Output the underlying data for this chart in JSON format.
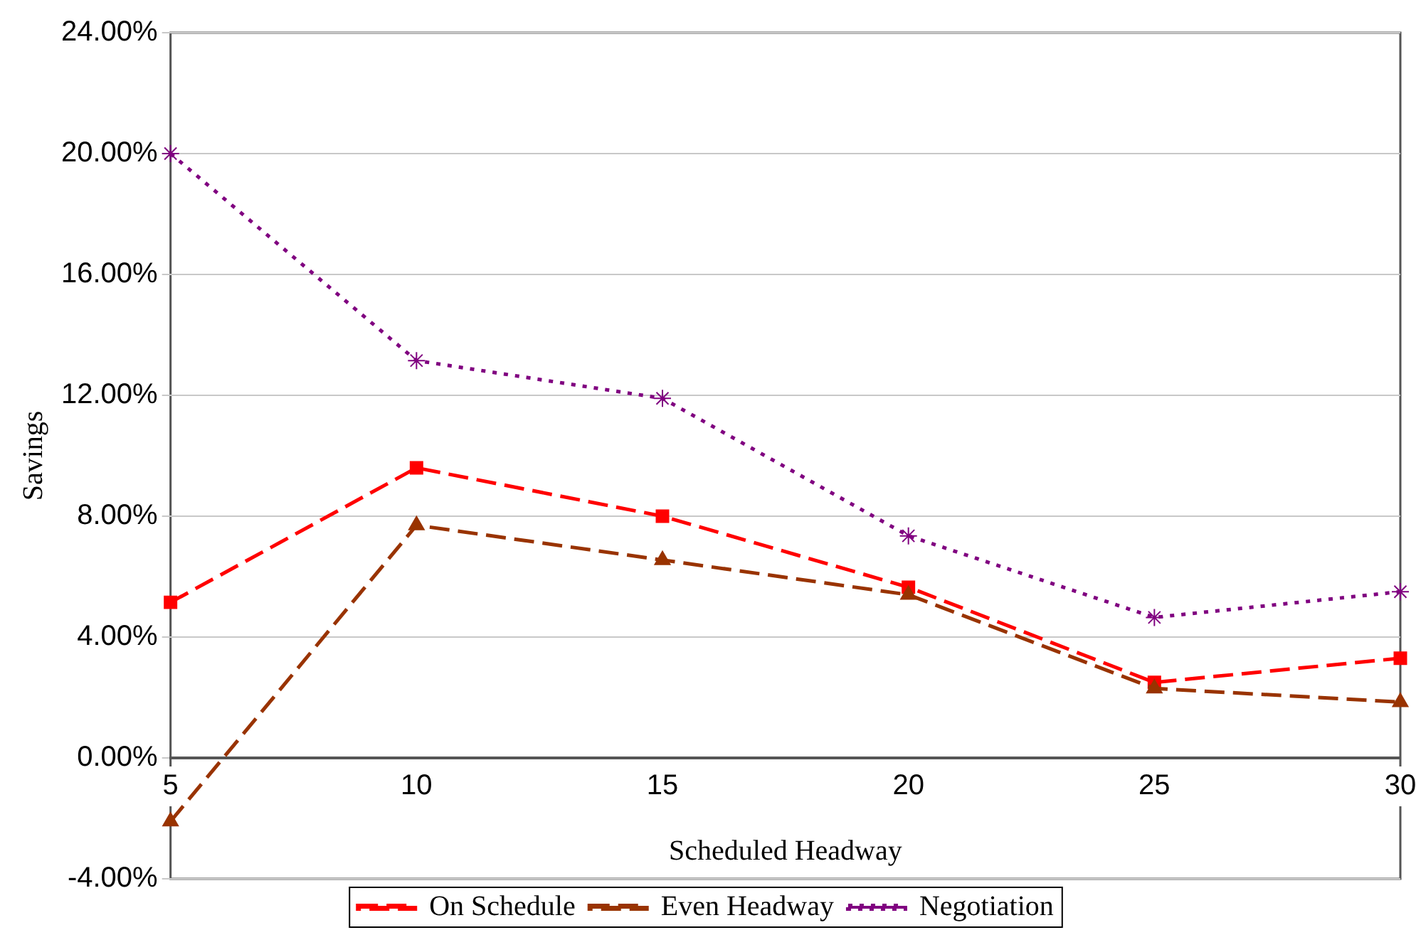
{
  "chart_data": {
    "type": "line",
    "xlabel": "Scheduled Headway",
    "ylabel": "Savings",
    "categories": [
      "5",
      "10",
      "15",
      "20",
      "25",
      "30"
    ],
    "series": [
      {
        "name": "On Schedule",
        "color": "#ff0000",
        "marker": "square",
        "line_style": "dashed",
        "values": [
          5.15,
          9.6,
          8.0,
          5.65,
          2.5,
          3.3
        ]
      },
      {
        "name": "Even Headway",
        "color": "#993300",
        "marker": "triangle",
        "line_style": "dashed",
        "values": [
          -2.1,
          7.7,
          6.55,
          5.4,
          2.3,
          1.85
        ]
      },
      {
        "name": "Negotiation",
        "color": "#800080",
        "marker": "cross",
        "line_style": "dotted",
        "values": [
          20.0,
          13.15,
          11.9,
          7.35,
          4.65,
          5.5
        ]
      }
    ],
    "ylim": [
      -4,
      24
    ],
    "yticks": [
      {
        "value": -4,
        "label": "-4.00%"
      },
      {
        "value": 0,
        "label": "0.00%"
      },
      {
        "value": 4,
        "label": "4.00%"
      },
      {
        "value": 8,
        "label": "8.00%"
      },
      {
        "value": 12,
        "label": "12.00%"
      },
      {
        "value": 16,
        "label": "16.00%"
      },
      {
        "value": 20,
        "label": "20.00%"
      },
      {
        "value": 24,
        "label": "24.00%"
      }
    ],
    "grid": "y",
    "legend": "bottom"
  }
}
